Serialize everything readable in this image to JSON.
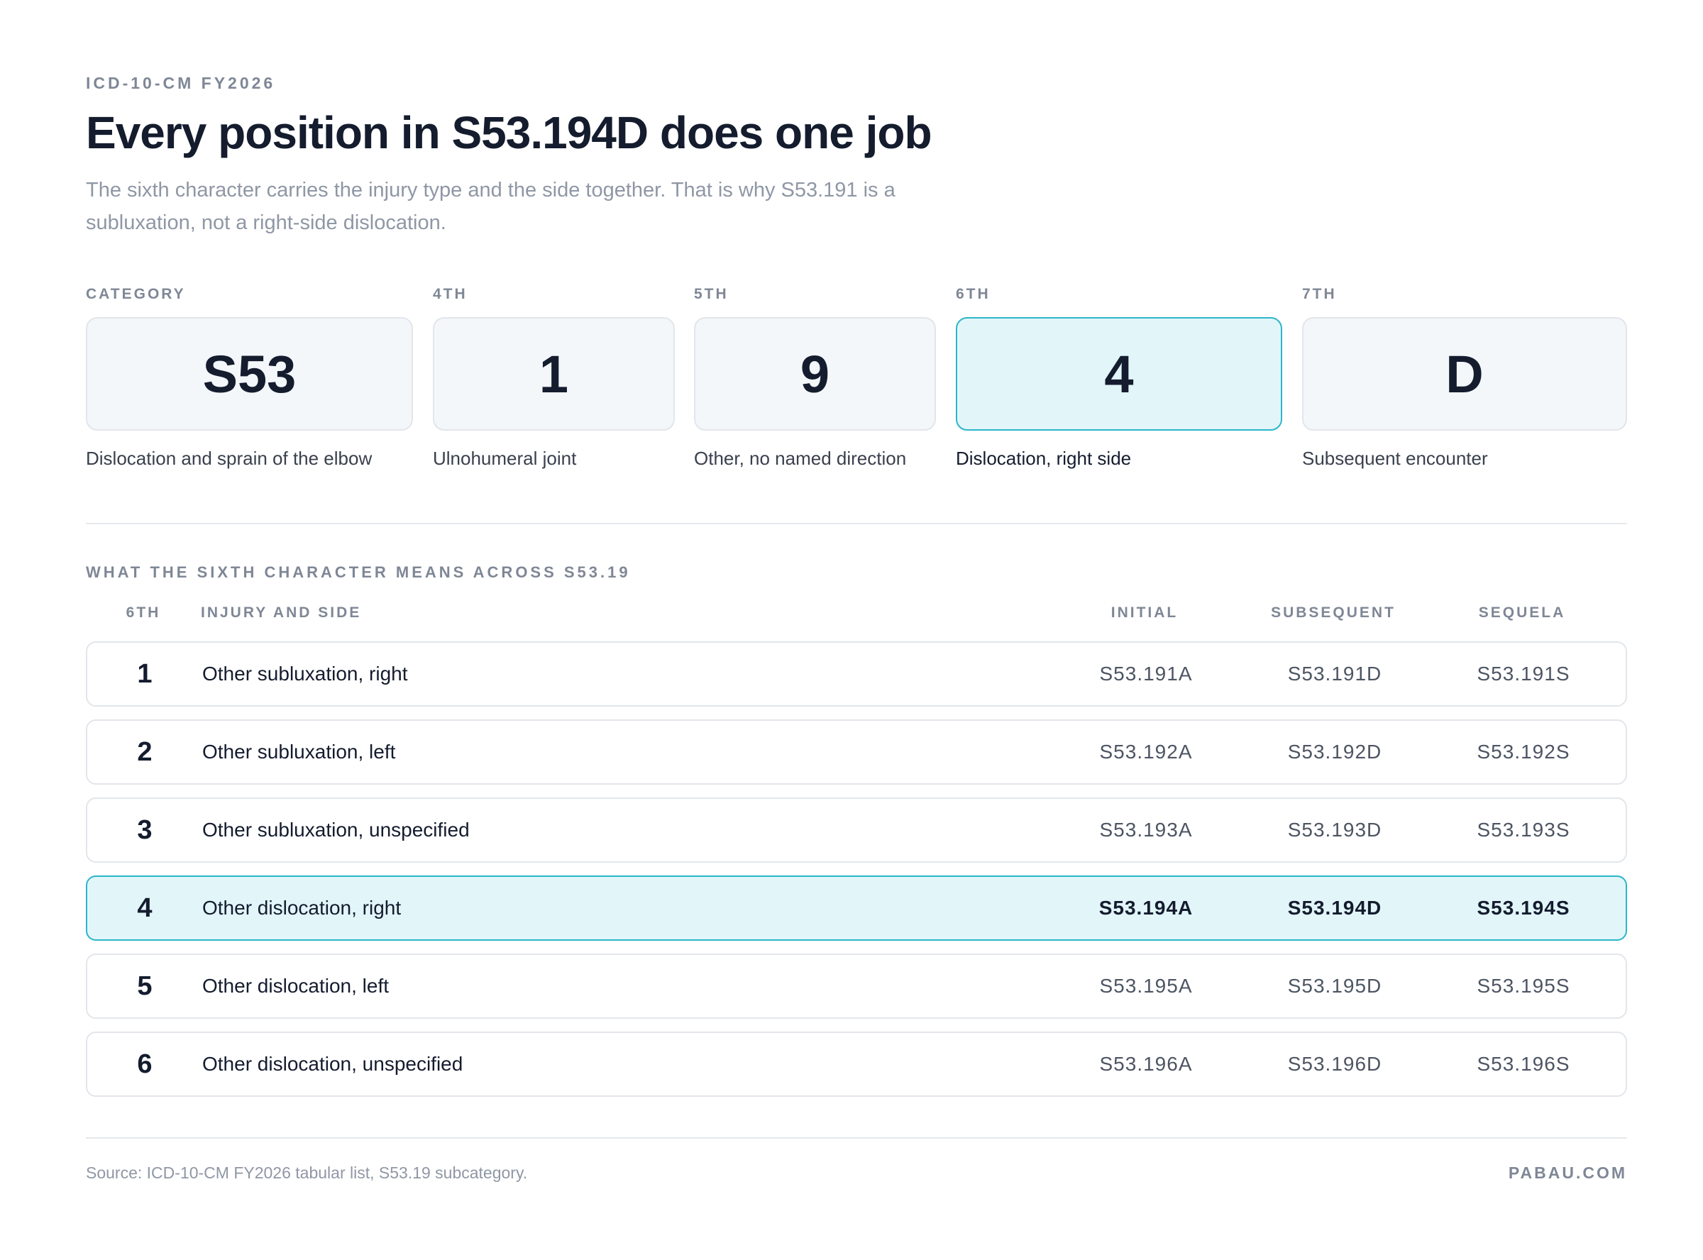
{
  "header": {
    "eyebrow": "ICD-10-CM FY2026",
    "title": "Every position in S53.194D does one job",
    "subtitle": "The sixth character carries the injury type and the side together. That is why S53.191 is a subluxation, not a right-side dislocation."
  },
  "segments": [
    {
      "label": "CATEGORY",
      "value": "S53",
      "description": "Dislocation and sprain of the elbow",
      "active": false
    },
    {
      "label": "4TH",
      "value": "1",
      "description": "Ulnohumeral joint",
      "active": false
    },
    {
      "label": "5TH",
      "value": "9",
      "description": "Other, no named direction",
      "active": false
    },
    {
      "label": "6TH",
      "value": "4",
      "description": "Dislocation, right side",
      "active": true
    },
    {
      "label": "7TH",
      "value": "D",
      "description": "Subsequent encounter",
      "active": false
    }
  ],
  "table": {
    "caption": "WHAT THE SIXTH CHARACTER MEANS ACROSS S53.19",
    "headers": {
      "sixth": "6TH",
      "injury": "INJURY AND SIDE",
      "initial": "INITIAL",
      "subsequent": "SUBSEQUENT",
      "sequela": "SEQUELA"
    },
    "rows": [
      {
        "sixth": "1",
        "injury": "Other subluxation, right",
        "initial": "S53.191A",
        "subsequent": "S53.191D",
        "sequela": "S53.191S",
        "active": false
      },
      {
        "sixth": "2",
        "injury": "Other subluxation, left",
        "initial": "S53.192A",
        "subsequent": "S53.192D",
        "sequela": "S53.192S",
        "active": false
      },
      {
        "sixth": "3",
        "injury": "Other subluxation, unspecified",
        "initial": "S53.193A",
        "subsequent": "S53.193D",
        "sequela": "S53.193S",
        "active": false
      },
      {
        "sixth": "4",
        "injury": "Other dislocation, right",
        "initial": "S53.194A",
        "subsequent": "S53.194D",
        "sequela": "S53.194S",
        "active": true
      },
      {
        "sixth": "5",
        "injury": "Other dislocation, left",
        "initial": "S53.195A",
        "subsequent": "S53.195D",
        "sequela": "S53.195S",
        "active": false
      },
      {
        "sixth": "6",
        "injury": "Other dislocation, unspecified",
        "initial": "S53.196A",
        "subsequent": "S53.196D",
        "sequela": "S53.196S",
        "active": false
      }
    ]
  },
  "footer": {
    "source": "Source: ICD-10-CM FY2026 tabular list, S53.19 subcategory.",
    "brand": "PABAU.COM"
  },
  "colors": {
    "accent": "#2bb6c9",
    "accent_fill": "#e2f6fa",
    "text": "#141c2e",
    "muted": "#7f8796"
  }
}
